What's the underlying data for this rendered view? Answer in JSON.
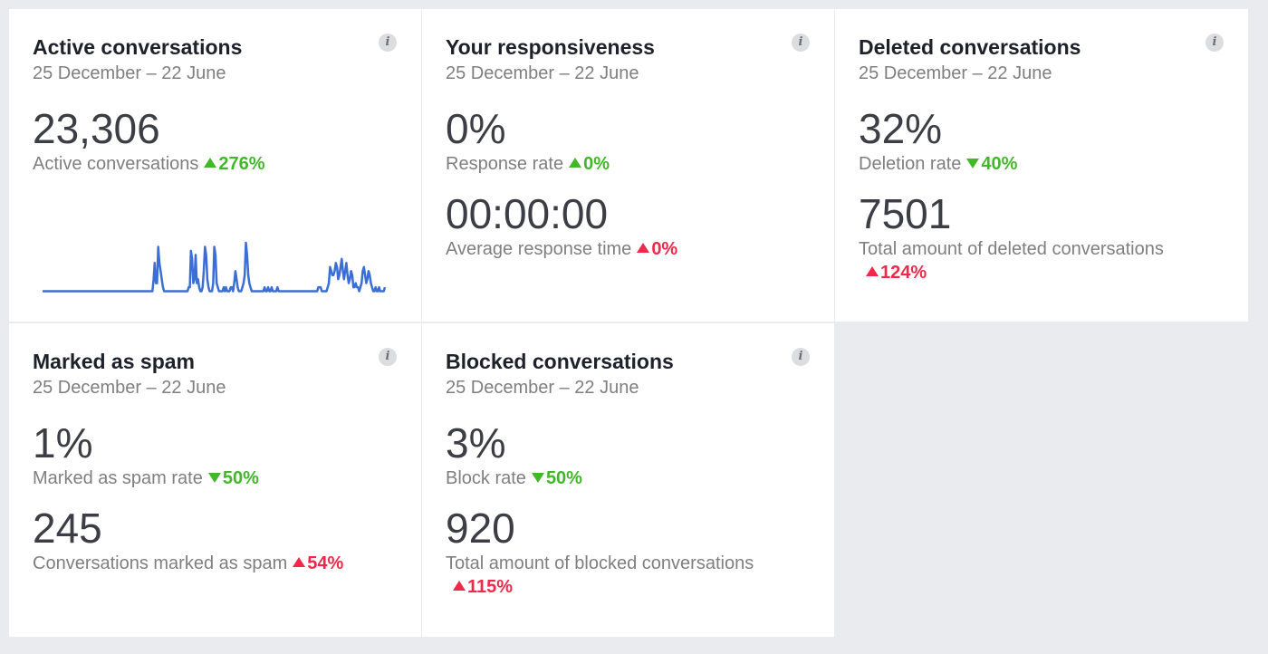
{
  "cards": [
    {
      "title": "Active conversations",
      "date": "25 December – 22 June",
      "info": "i",
      "metrics": [
        {
          "value": "23,306",
          "label": "Active conversations",
          "change": "276%",
          "direction": "up",
          "color": "#42b72a"
        }
      ]
    },
    {
      "title": "Your responsiveness",
      "date": "25 December – 22 June",
      "info": "i",
      "metrics": [
        {
          "value": "0%",
          "label": "Response rate",
          "change": "0%",
          "direction": "up",
          "color": "#42b72a"
        },
        {
          "value": "00:00:00",
          "label": "Average response time",
          "change": "0%",
          "direction": "up",
          "color": "#f02849"
        }
      ]
    },
    {
      "title": "Deleted conversations",
      "date": "25 December – 22 June",
      "info": "i",
      "metrics": [
        {
          "value": "32%",
          "label": "Deletion rate",
          "change": "40%",
          "direction": "down",
          "color": "#42b72a"
        },
        {
          "value": "7501",
          "label": "Total amount of deleted conversations",
          "change": "124%",
          "direction": "up",
          "color": "#f02849"
        }
      ]
    },
    {
      "title": "Marked as spam",
      "date": "25 December – 22 June",
      "info": "i",
      "metrics": [
        {
          "value": "1%",
          "label": "Marked as spam rate",
          "change": "50%",
          "direction": "down",
          "color": "#42b72a"
        },
        {
          "value": "245",
          "label": "Conversations marked as spam",
          "change": "54%",
          "direction": "up",
          "color": "#f02849"
        }
      ]
    },
    {
      "title": "Blocked conversations",
      "date": "25 December – 22 June",
      "info": "i",
      "metrics": [
        {
          "value": "3%",
          "label": "Block rate",
          "change": "50%",
          "direction": "down",
          "color": "#42b72a"
        },
        {
          "value": "920",
          "label": "Total amount of blocked conversations",
          "change": "115%",
          "direction": "up",
          "color": "#f02849"
        }
      ]
    }
  ],
  "sparkline": {
    "color": "#3b6fd6",
    "values": [
      1,
      1,
      1,
      1,
      1,
      1,
      1,
      1,
      1,
      1,
      1,
      1,
      1,
      1,
      1,
      1,
      1,
      1,
      1,
      1,
      1,
      1,
      1,
      1,
      1,
      1,
      1,
      1,
      1,
      1,
      1,
      1,
      1,
      1,
      1,
      1,
      1,
      1,
      1,
      1,
      1,
      1,
      1,
      1,
      1,
      1,
      1,
      1,
      1,
      1,
      1,
      1,
      1,
      1,
      1,
      1,
      1,
      1,
      1,
      1,
      1,
      1,
      1,
      1,
      1,
      1,
      1,
      1,
      1,
      1,
      1,
      1,
      1,
      1,
      1,
      1,
      1,
      1,
      1,
      1,
      1,
      1,
      1,
      1,
      1,
      1,
      1,
      1,
      1,
      1,
      1,
      1,
      1,
      1,
      1,
      4,
      8,
      3,
      3,
      12,
      8,
      6,
      4,
      2,
      1,
      1,
      1,
      1,
      1,
      1,
      1,
      1,
      1,
      1,
      1,
      1,
      1,
      1,
      1,
      1,
      1,
      1,
      1,
      1,
      1,
      2,
      2,
      11,
      9,
      3,
      4,
      10,
      3,
      4,
      2,
      1,
      1,
      2,
      6,
      12,
      10,
      4,
      2,
      1,
      1,
      1,
      3,
      12,
      10,
      3,
      2,
      1,
      1,
      1,
      1,
      2,
      1,
      2,
      1,
      1,
      1,
      2,
      2,
      1,
      3,
      6,
      4,
      2,
      1,
      1,
      1,
      2,
      3,
      5,
      13,
      10,
      5,
      3,
      2,
      1,
      1,
      1,
      1,
      1,
      1,
      1,
      1,
      1,
      1,
      1,
      2,
      1,
      1,
      2,
      1,
      1,
      2,
      1,
      1,
      1,
      1,
      2,
      1,
      1,
      1,
      1,
      1,
      1,
      1,
      1,
      1,
      1,
      1,
      1,
      1,
      1,
      1,
      1,
      1,
      1,
      1,
      1,
      1,
      1,
      1,
      1,
      1,
      1,
      1,
      1,
      1,
      1,
      1,
      1,
      1,
      1,
      2,
      2,
      2,
      1,
      1,
      1,
      1,
      1,
      2,
      3,
      7,
      6,
      5,
      5,
      6,
      8,
      7,
      4,
      5,
      7,
      9,
      6,
      4,
      6,
      8,
      5,
      3,
      4,
      6,
      5,
      2,
      2,
      3,
      2,
      2,
      1,
      2,
      3,
      6,
      7,
      5,
      3,
      4,
      6,
      5,
      3,
      2,
      1,
      1,
      2,
      1,
      1,
      2,
      1,
      1,
      1,
      1,
      2
    ]
  }
}
